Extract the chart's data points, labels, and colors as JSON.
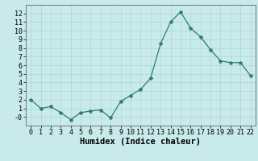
{
  "x": [
    0,
    1,
    2,
    3,
    4,
    5,
    6,
    7,
    8,
    9,
    10,
    11,
    12,
    13,
    14,
    15,
    16,
    17,
    18,
    19,
    20,
    21,
    22
  ],
  "y": [
    2,
    1,
    1.2,
    0.5,
    -0.3,
    0.5,
    0.7,
    0.8,
    -0.1,
    1.8,
    2.5,
    3.2,
    4.5,
    8.5,
    11.0,
    12.2,
    10.3,
    9.3,
    7.8,
    6.5,
    6.3,
    6.3,
    4.8
  ],
  "xlabel": "Humidex (Indice chaleur)",
  "xlim": [
    -0.5,
    22.5
  ],
  "ylim": [
    -1,
    13
  ],
  "yticks": [
    0,
    1,
    2,
    3,
    4,
    5,
    6,
    7,
    8,
    9,
    10,
    11,
    12
  ],
  "xticks": [
    0,
    1,
    2,
    3,
    4,
    5,
    6,
    7,
    8,
    9,
    10,
    11,
    12,
    13,
    14,
    15,
    16,
    17,
    18,
    19,
    20,
    21,
    22
  ],
  "line_color": "#2e7d6e",
  "bg_color": "#c8eaea",
  "grid_color": "#b0d4d4",
  "tick_label_fontsize": 6.0,
  "xlabel_fontsize": 7.5
}
